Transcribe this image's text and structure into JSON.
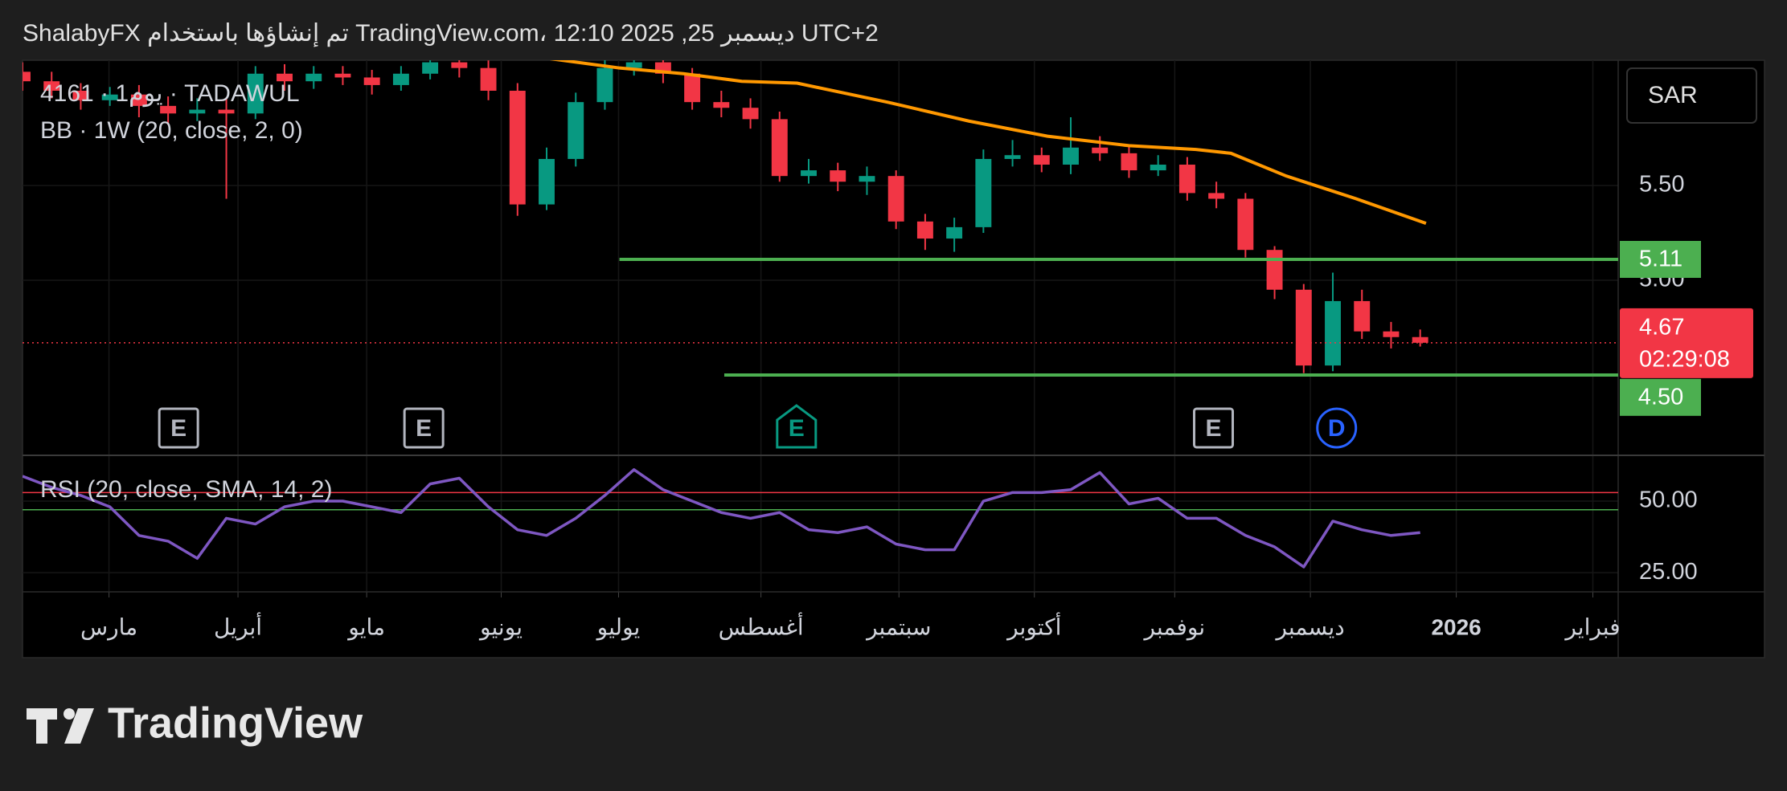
{
  "header": "ShalabyFX تم إنشاؤها باستخدام TradingView.com، 12:10 2025 ,25 ديسمبر UTC+2",
  "chart_data": {
    "type": "candlestick",
    "symbol_label": "4161 · يوم1 · TADAWUL",
    "currency": "SAR",
    "x": [
      0,
      1,
      2,
      3,
      4,
      5,
      6,
      7,
      8,
      9,
      10,
      11,
      12,
      13,
      14,
      15,
      16,
      17,
      18,
      19,
      20,
      21,
      22,
      23,
      24,
      25,
      26,
      27,
      28,
      29,
      30,
      31,
      32,
      33,
      34,
      35,
      36,
      37,
      38,
      39,
      40,
      41,
      42,
      43,
      44,
      45,
      46,
      47,
      48
    ],
    "open": [
      6.1,
      6.05,
      6.0,
      5.95,
      5.98,
      5.92,
      5.88,
      5.9,
      5.88,
      6.09,
      6.05,
      6.09,
      6.07,
      6.03,
      6.09,
      6.15,
      6.12,
      6.0,
      5.4,
      5.64,
      5.94,
      6.12,
      6.15,
      6.09,
      5.94,
      5.91,
      5.85,
      5.55,
      5.58,
      5.52,
      5.55,
      5.31,
      5.22,
      5.28,
      5.64,
      5.66,
      5.61,
      5.7,
      5.67,
      5.58,
      5.61,
      5.46,
      5.43,
      5.16,
      4.95,
      4.55,
      4.89,
      4.73,
      4.7
    ],
    "high": [
      6.15,
      6.1,
      6.04,
      6.02,
      6.03,
      5.97,
      5.96,
      5.96,
      6.13,
      6.14,
      6.13,
      6.13,
      6.11,
      6.13,
      6.2,
      6.19,
      6.16,
      6.04,
      5.7,
      5.99,
      6.17,
      6.2,
      6.18,
      6.12,
      6.0,
      5.96,
      5.89,
      5.64,
      5.62,
      5.6,
      5.58,
      5.35,
      5.33,
      5.69,
      5.74,
      5.7,
      5.86,
      5.76,
      5.71,
      5.66,
      5.65,
      5.52,
      5.46,
      5.18,
      4.98,
      5.04,
      4.95,
      4.78,
      4.74
    ],
    "low": [
      6.0,
      5.96,
      5.9,
      5.92,
      5.86,
      5.82,
      5.84,
      5.43,
      5.85,
      6.0,
      6.01,
      6.03,
      5.98,
      6.0,
      6.06,
      6.07,
      5.95,
      5.34,
      5.37,
      5.6,
      5.9,
      6.08,
      6.04,
      5.9,
      5.86,
      5.8,
      5.52,
      5.51,
      5.47,
      5.45,
      5.27,
      5.16,
      5.15,
      5.25,
      5.6,
      5.57,
      5.56,
      5.63,
      5.54,
      5.55,
      5.42,
      5.38,
      5.12,
      4.9,
      4.51,
      4.52,
      4.69,
      4.64,
      4.65
    ],
    "close": [
      6.05,
      6.0,
      5.95,
      5.98,
      5.92,
      5.88,
      5.9,
      5.88,
      6.09,
      6.05,
      6.09,
      6.07,
      6.03,
      6.09,
      6.15,
      6.12,
      6.0,
      5.4,
      5.64,
      5.94,
      6.12,
      6.15,
      6.09,
      5.94,
      5.91,
      5.85,
      5.55,
      5.58,
      5.52,
      5.55,
      5.31,
      5.22,
      5.28,
      5.64,
      5.66,
      5.61,
      5.7,
      5.67,
      5.58,
      5.61,
      5.46,
      5.43,
      5.16,
      4.95,
      4.55,
      4.89,
      4.73,
      4.7,
      4.67
    ],
    "up_color": "#089981",
    "down_color": "#f23645",
    "xlim": [
      0,
      54.8
    ],
    "xticks": [
      {
        "value": 2.97,
        "label": "مارس"
      },
      {
        "value": 7.4,
        "label": "أبريل"
      },
      {
        "value": 11.82,
        "label": "مايو"
      },
      {
        "value": 16.44,
        "label": "يونيو"
      },
      {
        "value": 20.47,
        "label": "يوليو"
      },
      {
        "value": 25.36,
        "label": "أغسطس"
      },
      {
        "value": 30.1,
        "label": "سبتمبر"
      },
      {
        "value": 34.75,
        "label": "أكتوبر"
      },
      {
        "value": 39.57,
        "label": "نوفمبر"
      },
      {
        "value": 44.23,
        "label": "ديسمبر"
      },
      {
        "value": 49.24,
        "label": "2026"
      },
      {
        "value": 53.93,
        "label": "فبراير"
      }
    ],
    "ylim": [
      4.076,
      6.161
    ],
    "yticks": [
      {
        "value": 5.0,
        "label": "5.00"
      },
      {
        "value": 5.5,
        "label": "5.50"
      }
    ],
    "grid": true,
    "indicator": {
      "name": "BB · 1W (20, close, 2, 0)",
      "color": "#ff9800",
      "x": [
        17.6,
        20.5,
        22.7,
        24.7,
        26.6,
        29.7,
        32.5,
        35.2,
        38.0,
        40.3,
        41.5,
        43.4,
        45.8,
        48.2
      ],
      "values": [
        6.18,
        6.12,
        6.09,
        6.05,
        6.04,
        5.94,
        5.84,
        5.76,
        5.71,
        5.69,
        5.67,
        5.55,
        5.43,
        5.3
      ]
    },
    "levels": [
      {
        "value": 5.11,
        "from": 20.5,
        "color": "#4caf50"
      },
      {
        "value": 4.5,
        "label": "4.50",
        "from": 24.1,
        "color": "#4caf50"
      }
    ],
    "last_price": {
      "value": 4.67,
      "countdown": "02:29:08",
      "color": "#f23645"
    },
    "events": [
      {
        "label": "E",
        "x": 5.36,
        "color": "#b2b5be"
      },
      {
        "label": "E",
        "x": 13.78,
        "color": "#b2b5be"
      },
      {
        "label": "E",
        "x": 26.58,
        "color": "#089981"
      },
      {
        "label": "E",
        "x": 40.9,
        "color": "#b2b5be"
      },
      {
        "label": "D",
        "x": 45.13,
        "color": "#2962ff"
      }
    ],
    "rsi": {
      "name": "RSI (20, close, SMA, 14, 2)",
      "color": "#7e57c2",
      "values": [
        58.7,
        54.8,
        52,
        48,
        38,
        36,
        30,
        44,
        42,
        48,
        50,
        50,
        48,
        46,
        56,
        58,
        48,
        40,
        38,
        44,
        52,
        61,
        54,
        50,
        46,
        44,
        46,
        40,
        39,
        41,
        35,
        33,
        33,
        50,
        53,
        53,
        54,
        60,
        49,
        51,
        44,
        44,
        38,
        34,
        27,
        43,
        40,
        38,
        39
      ],
      "ylim": [
        18.3,
        66
      ],
      "yticks": [
        {
          "value": 25,
          "label": "25.00"
        },
        {
          "value": 50,
          "label": "50.00"
        }
      ],
      "upper_band": 53,
      "upper_color": "#f23645",
      "lower_band": 47,
      "lower_color": "#4caf50"
    }
  },
  "footer": {
    "logo": "TradingView"
  }
}
